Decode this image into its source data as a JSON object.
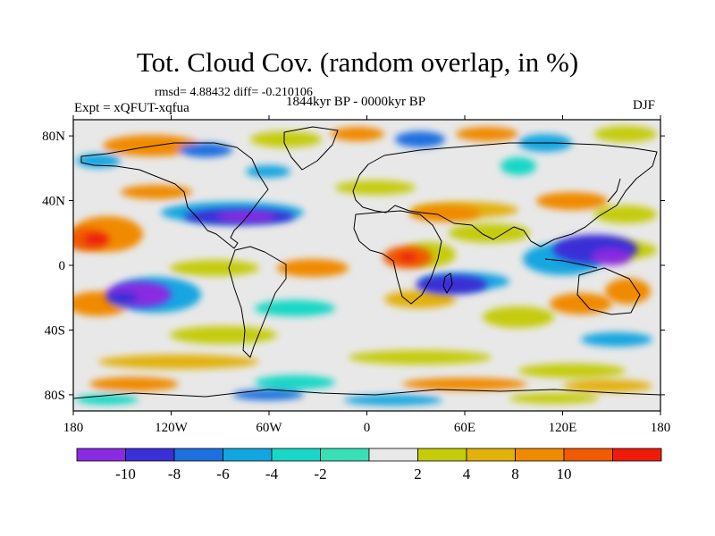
{
  "title": "Tot. Cloud Cov. (random overlap, in %)",
  "stats": "rmsd= 4.88432 diff= -0.210106",
  "period": "1844kyr BP - 0000kyr BP",
  "experiment": "Expt = xQFUT-xqfua",
  "season": "DJF",
  "map": {
    "projection": "cylindrical equidistant",
    "lon_range": [
      -180,
      180
    ],
    "lat_range": [
      -90,
      90
    ],
    "x_ticks": [
      {
        "lon": -180,
        "label": "180"
      },
      {
        "lon": -120,
        "label": "120W"
      },
      {
        "lon": -60,
        "label": "60W"
      },
      {
        "lon": 0,
        "label": "0"
      },
      {
        "lon": 60,
        "label": "60E"
      },
      {
        "lon": 120,
        "label": "120E"
      },
      {
        "lon": 180,
        "label": "180"
      }
    ],
    "y_ticks": [
      {
        "lat": 80,
        "label": "80N"
      },
      {
        "lat": 40,
        "label": "40N"
      },
      {
        "lat": 0,
        "label": "0"
      },
      {
        "lat": -40,
        "label": "40S"
      },
      {
        "lat": -80,
        "label": "80S"
      }
    ],
    "anomaly_regions": [
      {
        "lon": -172,
        "lat": 16,
        "rlon": 14,
        "rlat": 7,
        "bin": 10
      },
      {
        "lon": -166,
        "lat": 16,
        "rlon": 8,
        "rlat": 4,
        "bin": 11
      },
      {
        "lon": -140,
        "lat": -18,
        "rlon": 20,
        "rlat": 8,
        "bin": 0
      },
      {
        "lon": -150,
        "lat": -20,
        "rlon": 10,
        "rlat": 4,
        "bin": 1
      },
      {
        "lon": -78,
        "lat": 30,
        "rlon": 34,
        "rlat": 5,
        "bin": 1
      },
      {
        "lon": -74,
        "lat": 30,
        "rlon": 18,
        "rlat": 3,
        "bin": 0
      },
      {
        "lon": 25,
        "lat": 5,
        "rlon": 15,
        "rlat": 7,
        "bin": 10
      },
      {
        "lon": 25,
        "lat": 5,
        "rlon": 6,
        "rlat": 3,
        "bin": 11
      },
      {
        "lon": 52,
        "lat": -12,
        "rlon": 22,
        "rlat": 6,
        "bin": 1
      },
      {
        "lon": 140,
        "lat": 10,
        "rlon": 26,
        "rlat": 9,
        "bin": 1
      },
      {
        "lon": 150,
        "lat": 5,
        "rlon": 12,
        "rlat": 5,
        "bin": 0
      },
      {
        "lon": 160,
        "lat": -16,
        "rlon": 14,
        "rlat": 8,
        "bin": 9
      },
      {
        "lon": 48,
        "lat": 32,
        "rlon": 22,
        "rlat": 5,
        "bin": 9
      },
      {
        "lon": 75,
        "lat": 20,
        "rlon": 25,
        "rlat": 6,
        "bin": 7
      }
    ]
  },
  "colorbar": {
    "colors": [
      "#8a2be2",
      "#3a2fd6",
      "#1e6fe0",
      "#12a6e0",
      "#19d7c6",
      "#37e0b6",
      "#e8e8e8",
      "#c5cc0c",
      "#e2b10c",
      "#f08a00",
      "#f05a00",
      "#ef1a0a"
    ],
    "labels": [
      "-10",
      "-8",
      "-6",
      "-4",
      "-2",
      "2",
      "4",
      "8",
      "10"
    ]
  }
}
